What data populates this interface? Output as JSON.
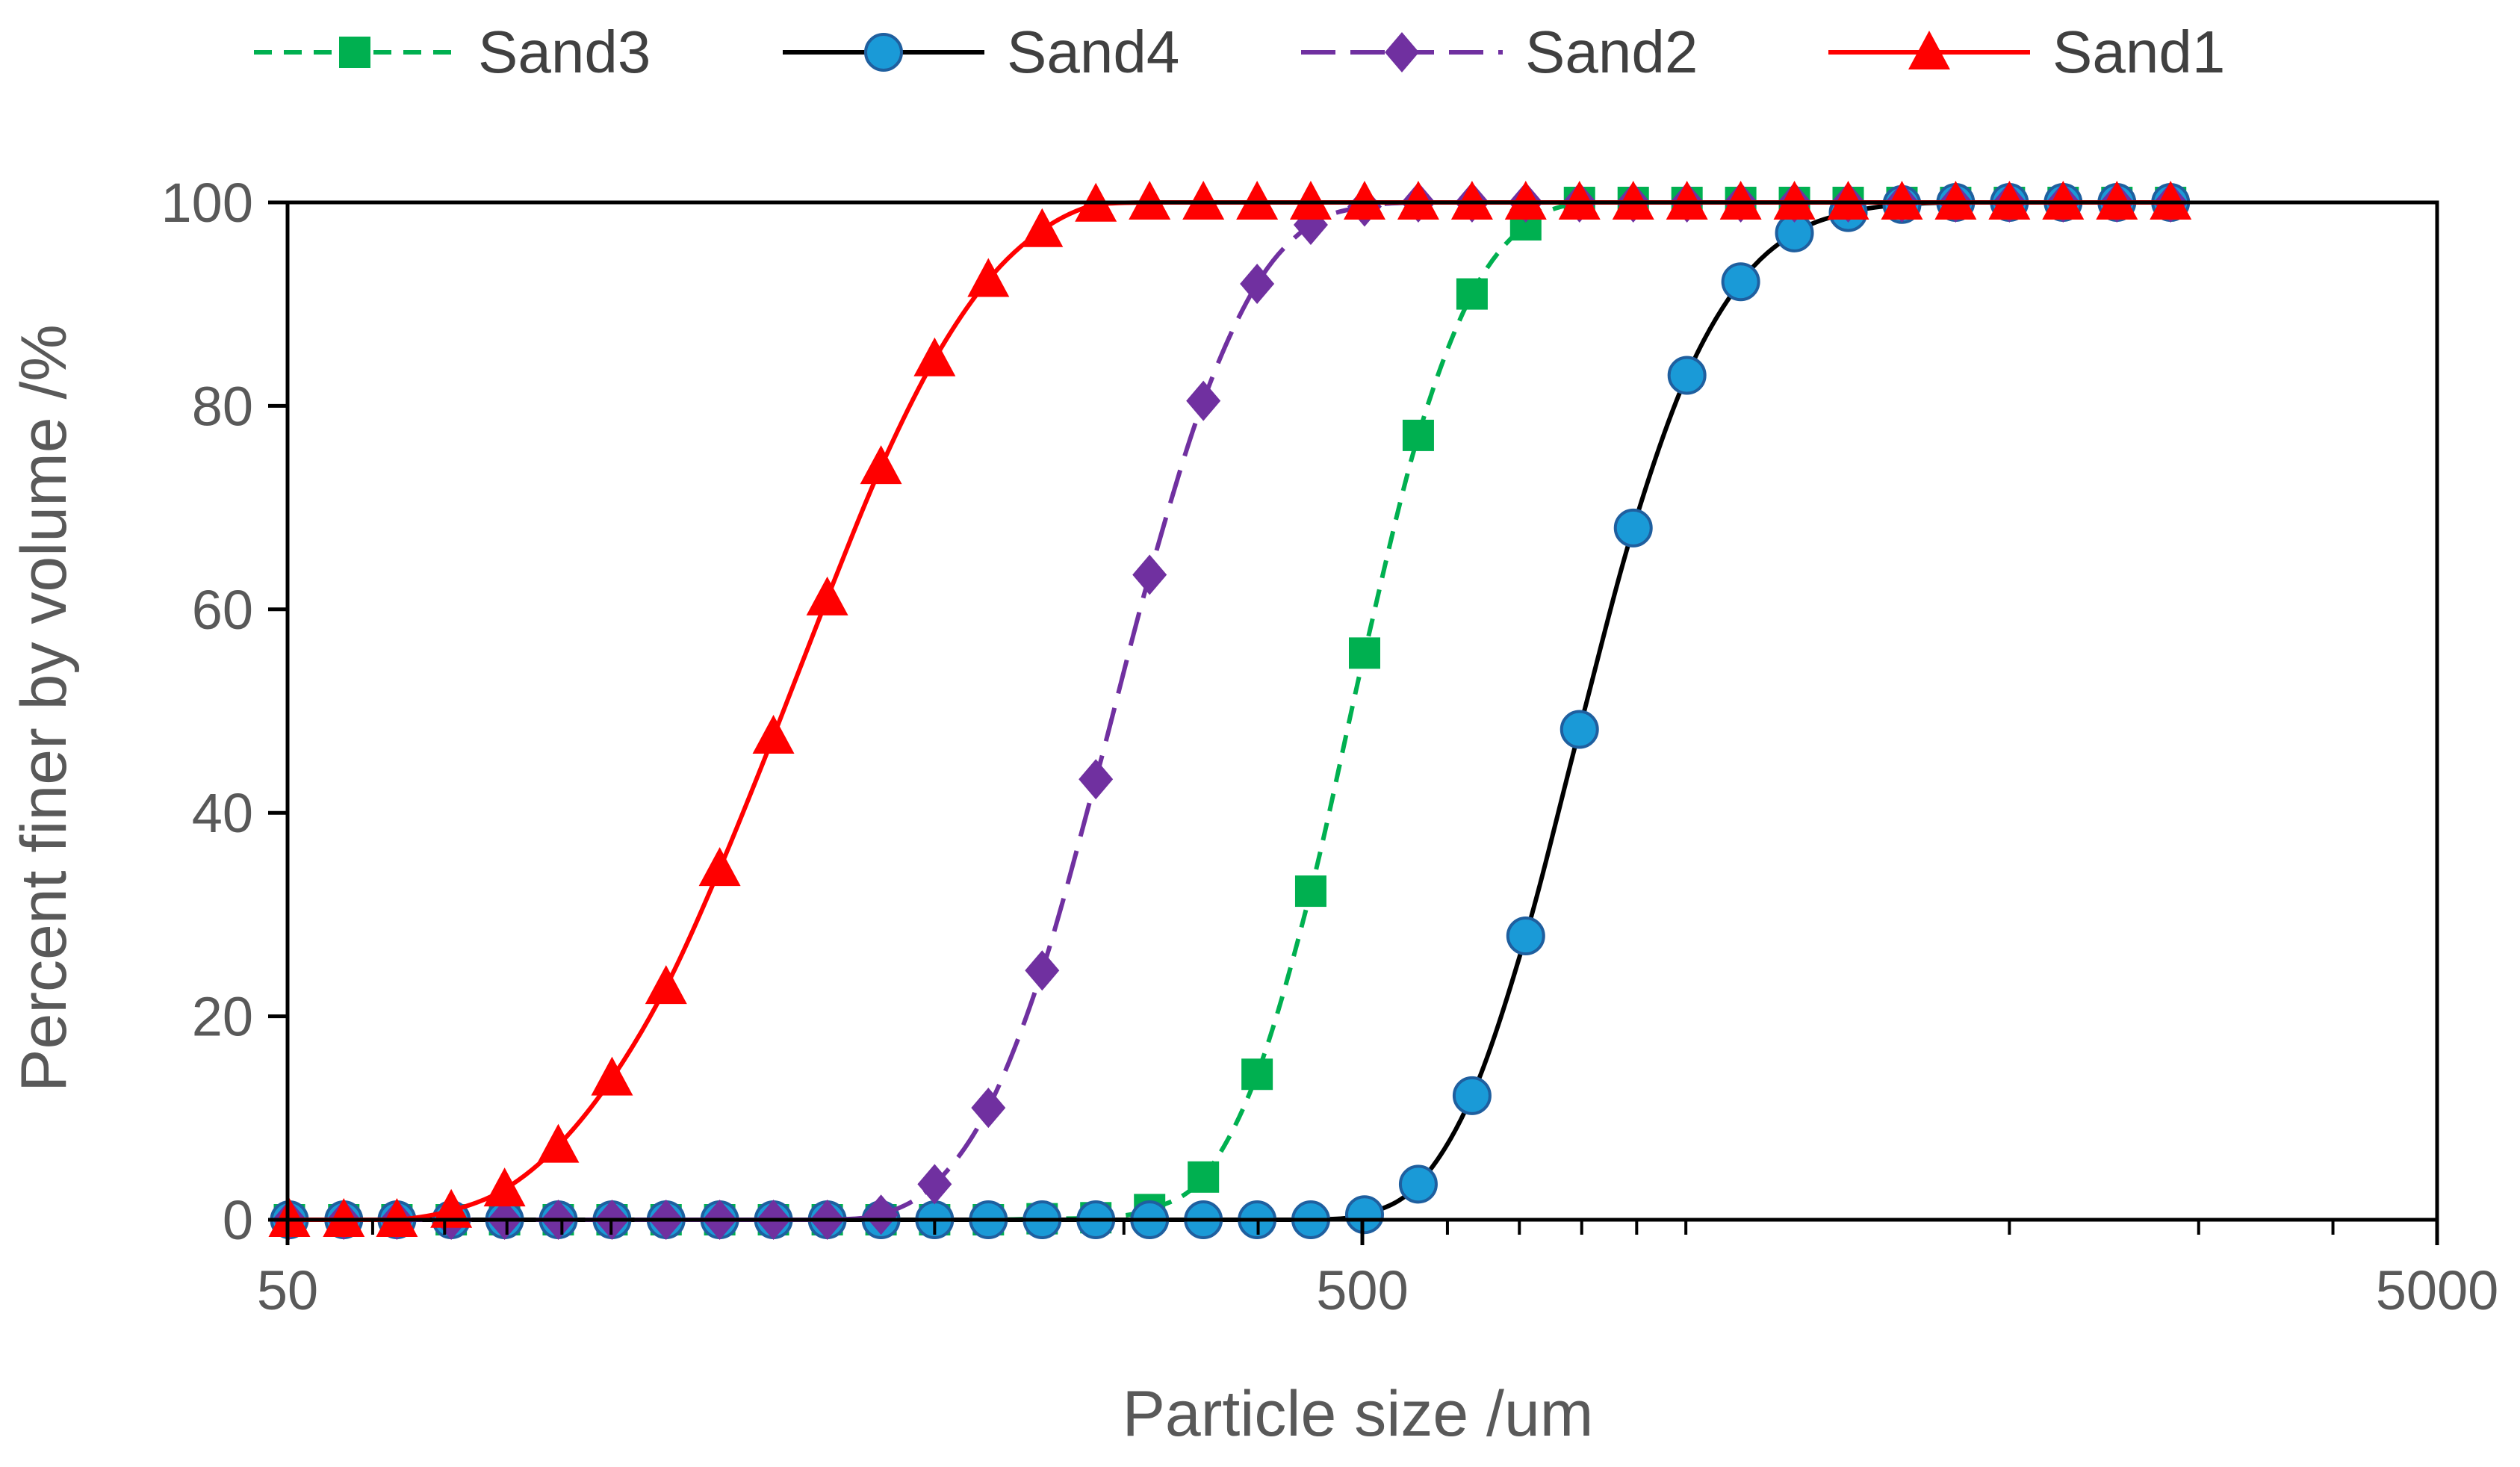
{
  "chart_data": {
    "type": "line",
    "title": "",
    "xlabel": "Particle size /um",
    "ylabel": "Percent finer by volume /%",
    "x_scale": "log",
    "xlim": [
      50,
      5000
    ],
    "ylim": [
      0,
      100
    ],
    "x_ticks": [
      50,
      500,
      5000
    ],
    "x_tick_labels": [
      "50",
      "500",
      "5000"
    ],
    "y_ticks": [
      0,
      20,
      40,
      60,
      80,
      100
    ],
    "y_tick_labels": [
      "0",
      "20",
      "40",
      "60",
      "80",
      "100"
    ],
    "grid": false,
    "legend_position": "top",
    "x": [
      50.2,
      56.4,
      63.2,
      71.0,
      79.6,
      89.3,
      100.2,
      112.5,
      126.2,
      141.6,
      158.9,
      178.3,
      200.0,
      224.4,
      251.8,
      282.5,
      317.0,
      355.7,
      399.1,
      447.7,
      502.4,
      563.7,
      632.5,
      709.6,
      796.2,
      893.4,
      1002.4,
      1124.7,
      1261.9,
      1415.9,
      1588.7,
      1782.5,
      2000.0,
      2244.0,
      2517.9,
      2825.1
    ],
    "series": [
      {
        "name": "Sand3",
        "color": "#00b050",
        "line_style": "dashed",
        "marker": "square",
        "values": [
          0,
          0,
          0,
          0,
          0,
          0,
          0,
          0,
          0,
          0,
          0,
          0,
          0,
          0,
          0.1,
          0.2,
          1.0,
          4.2,
          14.3,
          32.3,
          55.7,
          77.1,
          91.0,
          97.8,
          100,
          100,
          100,
          100,
          100,
          100,
          100,
          100,
          100,
          100,
          100,
          100
        ]
      },
      {
        "name": "Sand4",
        "color": "#000000",
        "marker_fill": "#1a9ad7",
        "line_style": "solid",
        "marker": "circle",
        "values": [
          0,
          0,
          0,
          0,
          0,
          0,
          0,
          0,
          0,
          0,
          0,
          0,
          0,
          0,
          0,
          0,
          0,
          0,
          0,
          0,
          0.5,
          3.5,
          12.2,
          27.9,
          48.2,
          68.0,
          83.0,
          92.2,
          97.0,
          99.0,
          99.8,
          100,
          100,
          100,
          100,
          100
        ]
      },
      {
        "name": "Sand2",
        "color": "#7030a0",
        "line_style": "dashed",
        "marker": "diamond",
        "values": [
          0,
          0,
          0,
          0,
          0,
          0,
          0,
          0,
          0,
          0,
          0,
          0.5,
          3.5,
          11.0,
          24.5,
          43.3,
          63.4,
          80.5,
          92.0,
          97.8,
          99.6,
          100,
          100,
          100,
          100,
          100,
          100,
          100,
          100,
          100,
          100,
          100,
          100,
          100,
          100,
          100
        ]
      },
      {
        "name": "Sand1",
        "color": "#ff0000",
        "line_style": "solid",
        "marker": "triangle",
        "values": [
          0,
          0,
          0,
          0.9,
          3.0,
          7.3,
          13.9,
          22.9,
          34.5,
          47.5,
          61.1,
          74.0,
          84.6,
          92.4,
          97.3,
          99.8,
          100,
          100,
          100,
          100,
          100,
          100,
          100,
          100,
          100,
          100,
          100,
          100,
          100,
          100,
          100,
          100,
          100,
          100,
          100,
          100
        ]
      }
    ]
  }
}
